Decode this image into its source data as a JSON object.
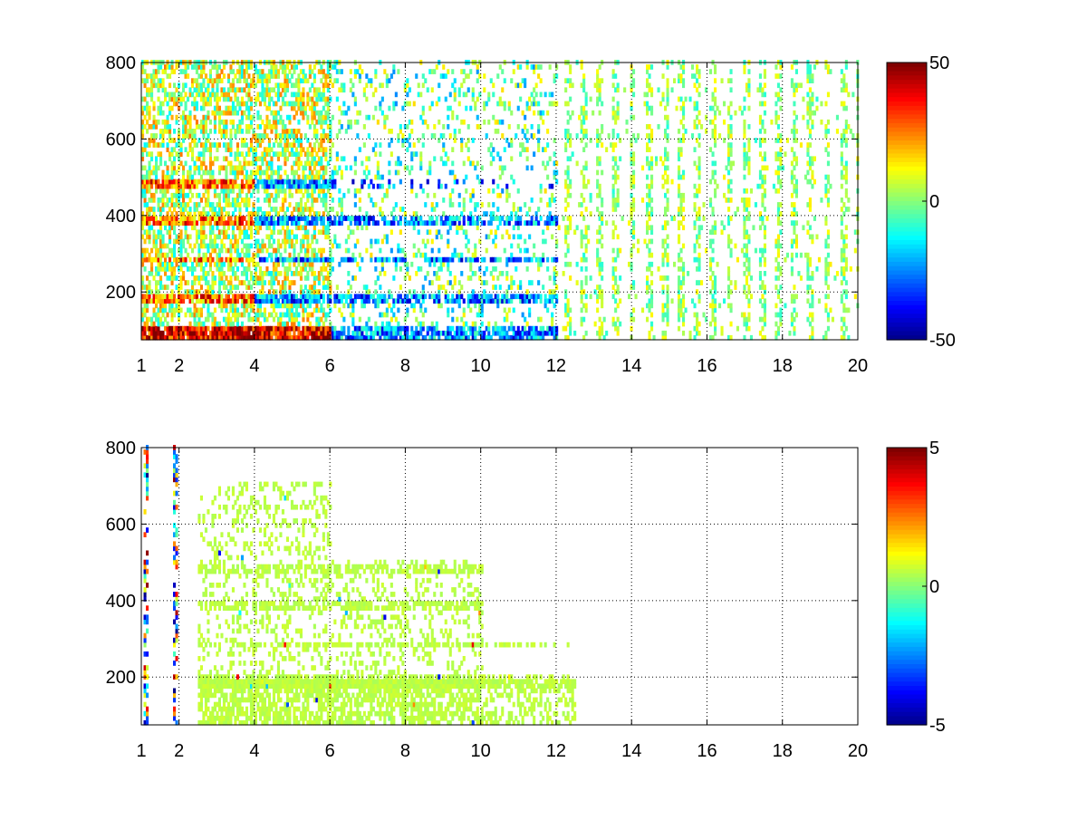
{
  "chart_data": [
    {
      "type": "heatmap",
      "title": "",
      "xlabel": "",
      "ylabel": "",
      "xlim": [
        1,
        20
      ],
      "ylim": [
        75,
        800
      ],
      "x_ticks": [
        1,
        2,
        4,
        6,
        8,
        10,
        12,
        14,
        16,
        18,
        20
      ],
      "x_tick_labels": [
        "1",
        "2",
        "4",
        "6",
        "8",
        "10",
        "12",
        "14",
        "16",
        "18",
        "20"
      ],
      "y_ticks": [
        200,
        400,
        600,
        800
      ],
      "y_tick_labels": [
        "200",
        "400",
        "600",
        "800"
      ],
      "grid": true,
      "colormap": "jet",
      "clim": [
        -50,
        50
      ],
      "colorbar_ticks": [
        50,
        0,
        -50
      ],
      "colorbar_tick_labels": [
        "50",
        "0",
        "-50"
      ],
      "description": "Dense colored cells for x between 1 and 6 (warm colors near y=80–100 and at bands y≈180, 280, 380, 480), blue bands near y≈180–380 for x 6–10, sparse green/yellow/cyan vertical streaks for x 12–20, white elsewhere (no data)."
    },
    {
      "type": "heatmap",
      "title": "",
      "xlabel": "",
      "ylabel": "",
      "xlim": [
        1,
        20
      ],
      "ylim": [
        75,
        800
      ],
      "x_ticks": [
        1,
        2,
        4,
        6,
        8,
        10,
        12,
        14,
        16,
        18,
        20
      ],
      "x_tick_labels": [
        "1",
        "2",
        "4",
        "6",
        "8",
        "10",
        "12",
        "14",
        "16",
        "18",
        "20"
      ],
      "y_ticks": [
        200,
        400,
        600,
        800
      ],
      "y_tick_labels": [
        "200",
        "400",
        "600",
        "800"
      ],
      "grid": true,
      "colormap": "jet",
      "clim": [
        -5,
        5
      ],
      "colorbar_ticks": [
        5,
        0,
        -5
      ],
      "colorbar_tick_labels": [
        "5",
        "0",
        "-5"
      ],
      "description": "Mostly light-green cells (value near 0) for x between 2.5 and 12.5 at y below 700, with horizontal bands at y≈180, 280, 380, 480; thin multicolor vertical streaks at x≈1.1 and x≈1.9; white (no data) elsewhere."
    }
  ]
}
